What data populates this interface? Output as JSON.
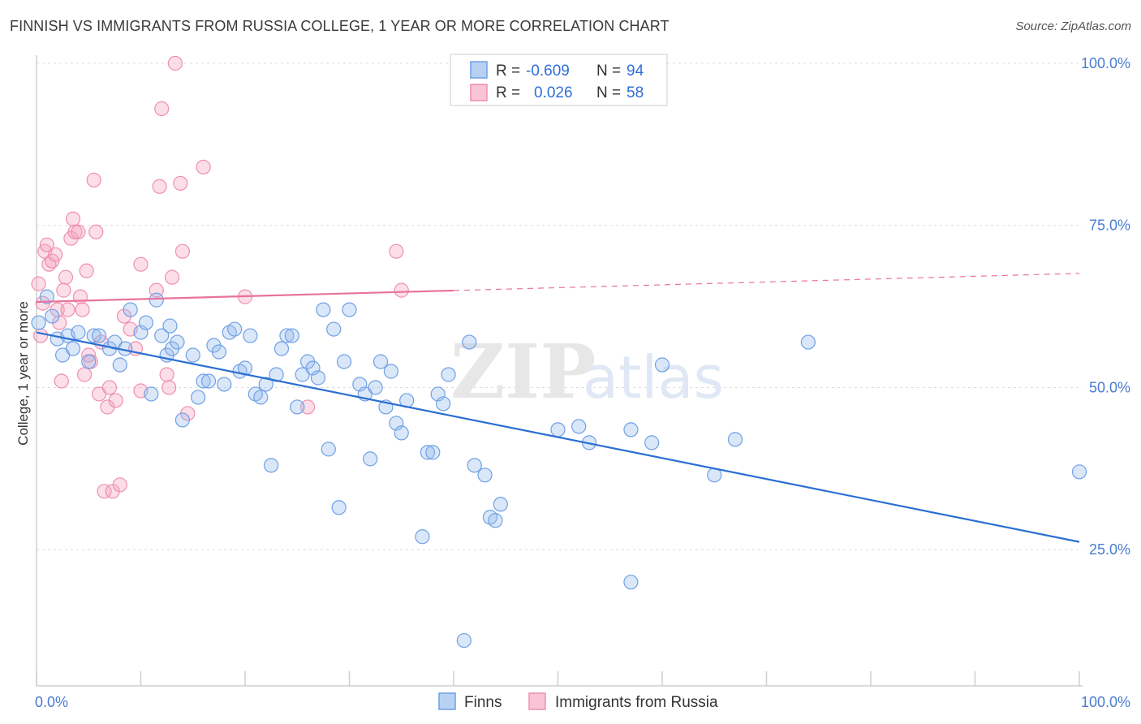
{
  "title": "FINNISH VS IMMIGRANTS FROM RUSSIA COLLEGE, 1 YEAR OR MORE CORRELATION CHART",
  "source": "Source: ZipAtlas.com",
  "watermark": {
    "zip": "ZIP",
    "atlas": "atlas"
  },
  "colors": {
    "finns": "#6fa0e6",
    "russia": "#f08fb0",
    "finns_line": "#2a6fd1",
    "russia_line": "#e8739a"
  },
  "legend": {
    "rows": [
      {
        "r_label": "R =",
        "r_value": "-0.609",
        "n_label": "N =",
        "n_value": "94"
      },
      {
        "r_label": "R =",
        "r_value": "0.026",
        "n_label": "N =",
        "n_value": "58"
      }
    ]
  },
  "chart_data": {
    "type": "scatter",
    "title": "FINNISH VS IMMIGRANTS FROM RUSSIA COLLEGE, 1 YEAR OR MORE CORRELATION CHART",
    "xlabel": "",
    "ylabel": "College, 1 year or more",
    "xlim": [
      0,
      100
    ],
    "ylim": [
      4,
      102
    ],
    "x_tick_labels": [
      "0.0%",
      "100.0%"
    ],
    "y_ticks": [
      25,
      50,
      75,
      100
    ],
    "y_tick_labels": [
      "25.0%",
      "50.0%",
      "75.0%",
      "100.0%"
    ],
    "series": [
      {
        "name": "Finns",
        "trend": {
          "x0": 0,
          "y0": 58.5,
          "x1": 100,
          "y1": 26.2
        },
        "points": [
          [
            0.2,
            60
          ],
          [
            1,
            64
          ],
          [
            1.5,
            61
          ],
          [
            2,
            57.5
          ],
          [
            2.5,
            55
          ],
          [
            3,
            58
          ],
          [
            3.5,
            56
          ],
          [
            4,
            58.5
          ],
          [
            5,
            54
          ],
          [
            5.5,
            58
          ],
          [
            6,
            58
          ],
          [
            7,
            56
          ],
          [
            7.5,
            57
          ],
          [
            8,
            53.5
          ],
          [
            8.5,
            56
          ],
          [
            9,
            62
          ],
          [
            10,
            58.5
          ],
          [
            10.5,
            60
          ],
          [
            11,
            49
          ],
          [
            11.5,
            63.5
          ],
          [
            12,
            58
          ],
          [
            12.5,
            55
          ],
          [
            12.8,
            59.5
          ],
          [
            13,
            56
          ],
          [
            13.5,
            57
          ],
          [
            14,
            45
          ],
          [
            15,
            55
          ],
          [
            15.5,
            48.5
          ],
          [
            16,
            51
          ],
          [
            16.5,
            51
          ],
          [
            17,
            56.5
          ],
          [
            17.5,
            55.5
          ],
          [
            18,
            50.5
          ],
          [
            18.5,
            58.5
          ],
          [
            19,
            59
          ],
          [
            19.5,
            52.5
          ],
          [
            20,
            53
          ],
          [
            20.5,
            58
          ],
          [
            21,
            49
          ],
          [
            21.5,
            48.5
          ],
          [
            22,
            50.5
          ],
          [
            22.5,
            38
          ],
          [
            23,
            52
          ],
          [
            23.5,
            56
          ],
          [
            24,
            58
          ],
          [
            24.5,
            58
          ],
          [
            25,
            47
          ],
          [
            25.5,
            52
          ],
          [
            26,
            54
          ],
          [
            26.5,
            53
          ],
          [
            27,
            51.5
          ],
          [
            27.5,
            62
          ],
          [
            28,
            40.5
          ],
          [
            28.5,
            59
          ],
          [
            29,
            31.5
          ],
          [
            29.5,
            54
          ],
          [
            30,
            62
          ],
          [
            31,
            50.5
          ],
          [
            31.5,
            49
          ],
          [
            32,
            39
          ],
          [
            32.5,
            50
          ],
          [
            33,
            54
          ],
          [
            33.5,
            47
          ],
          [
            34,
            52.5
          ],
          [
            34.5,
            44.5
          ],
          [
            35,
            43
          ],
          [
            35.5,
            48
          ],
          [
            37,
            27
          ],
          [
            37.5,
            40
          ],
          [
            38,
            40
          ],
          [
            38.5,
            49
          ],
          [
            39,
            47.5
          ],
          [
            39.5,
            52
          ],
          [
            41,
            11
          ],
          [
            41.5,
            57
          ],
          [
            42,
            38
          ],
          [
            43,
            36.5
          ],
          [
            43.5,
            30
          ],
          [
            44,
            29.5
          ],
          [
            44.5,
            32
          ],
          [
            50,
            43.5
          ],
          [
            52,
            44
          ],
          [
            53,
            41.5
          ],
          [
            57,
            43.5
          ],
          [
            57,
            20
          ],
          [
            59,
            41.5
          ],
          [
            60,
            53.5
          ],
          [
            65,
            36.5
          ],
          [
            67,
            42
          ],
          [
            74,
            57
          ],
          [
            100,
            37
          ]
        ]
      },
      {
        "name": "Immigrants from Russia",
        "trend": {
          "x0": 0,
          "y0": 63.2,
          "x1": 100,
          "y1": 67.6,
          "solid_until": 40
        },
        "points": [
          [
            0.2,
            66
          ],
          [
            0.4,
            58
          ],
          [
            0.6,
            63
          ],
          [
            0.8,
            71
          ],
          [
            1,
            72
          ],
          [
            1.2,
            69
          ],
          [
            1.5,
            69.5
          ],
          [
            1.8,
            70.5
          ],
          [
            2,
            62
          ],
          [
            2.2,
            60
          ],
          [
            2.4,
            51
          ],
          [
            2.6,
            65
          ],
          [
            2.8,
            67
          ],
          [
            3,
            62
          ],
          [
            3.3,
            73
          ],
          [
            3.5,
            76
          ],
          [
            3.7,
            74
          ],
          [
            4,
            74
          ],
          [
            4.2,
            64
          ],
          [
            4.4,
            62
          ],
          [
            4.6,
            52
          ],
          [
            4.8,
            68
          ],
          [
            5,
            55
          ],
          [
            5.2,
            54
          ],
          [
            5.5,
            82
          ],
          [
            5.7,
            74
          ],
          [
            6,
            49
          ],
          [
            6.2,
            57
          ],
          [
            6.5,
            34
          ],
          [
            6.8,
            47
          ],
          [
            7,
            50
          ],
          [
            7.3,
            34
          ],
          [
            7.6,
            48
          ],
          [
            8,
            35
          ],
          [
            8.4,
            61
          ],
          [
            9,
            59
          ],
          [
            9.5,
            56
          ],
          [
            10,
            49.5
          ],
          [
            10,
            69
          ],
          [
            11.5,
            65
          ],
          [
            11.8,
            81
          ],
          [
            12,
            93
          ],
          [
            12.5,
            52
          ],
          [
            12.7,
            50
          ],
          [
            13,
            67
          ],
          [
            13.3,
            100
          ],
          [
            13.8,
            81.5
          ],
          [
            14,
            71
          ],
          [
            14.5,
            46
          ],
          [
            16,
            84
          ],
          [
            20,
            64
          ],
          [
            26,
            47
          ],
          [
            34.5,
            71
          ],
          [
            35,
            65
          ]
        ]
      }
    ]
  },
  "bottom_legend": {
    "finns": "Finns",
    "russia": "Immigrants from Russia"
  }
}
